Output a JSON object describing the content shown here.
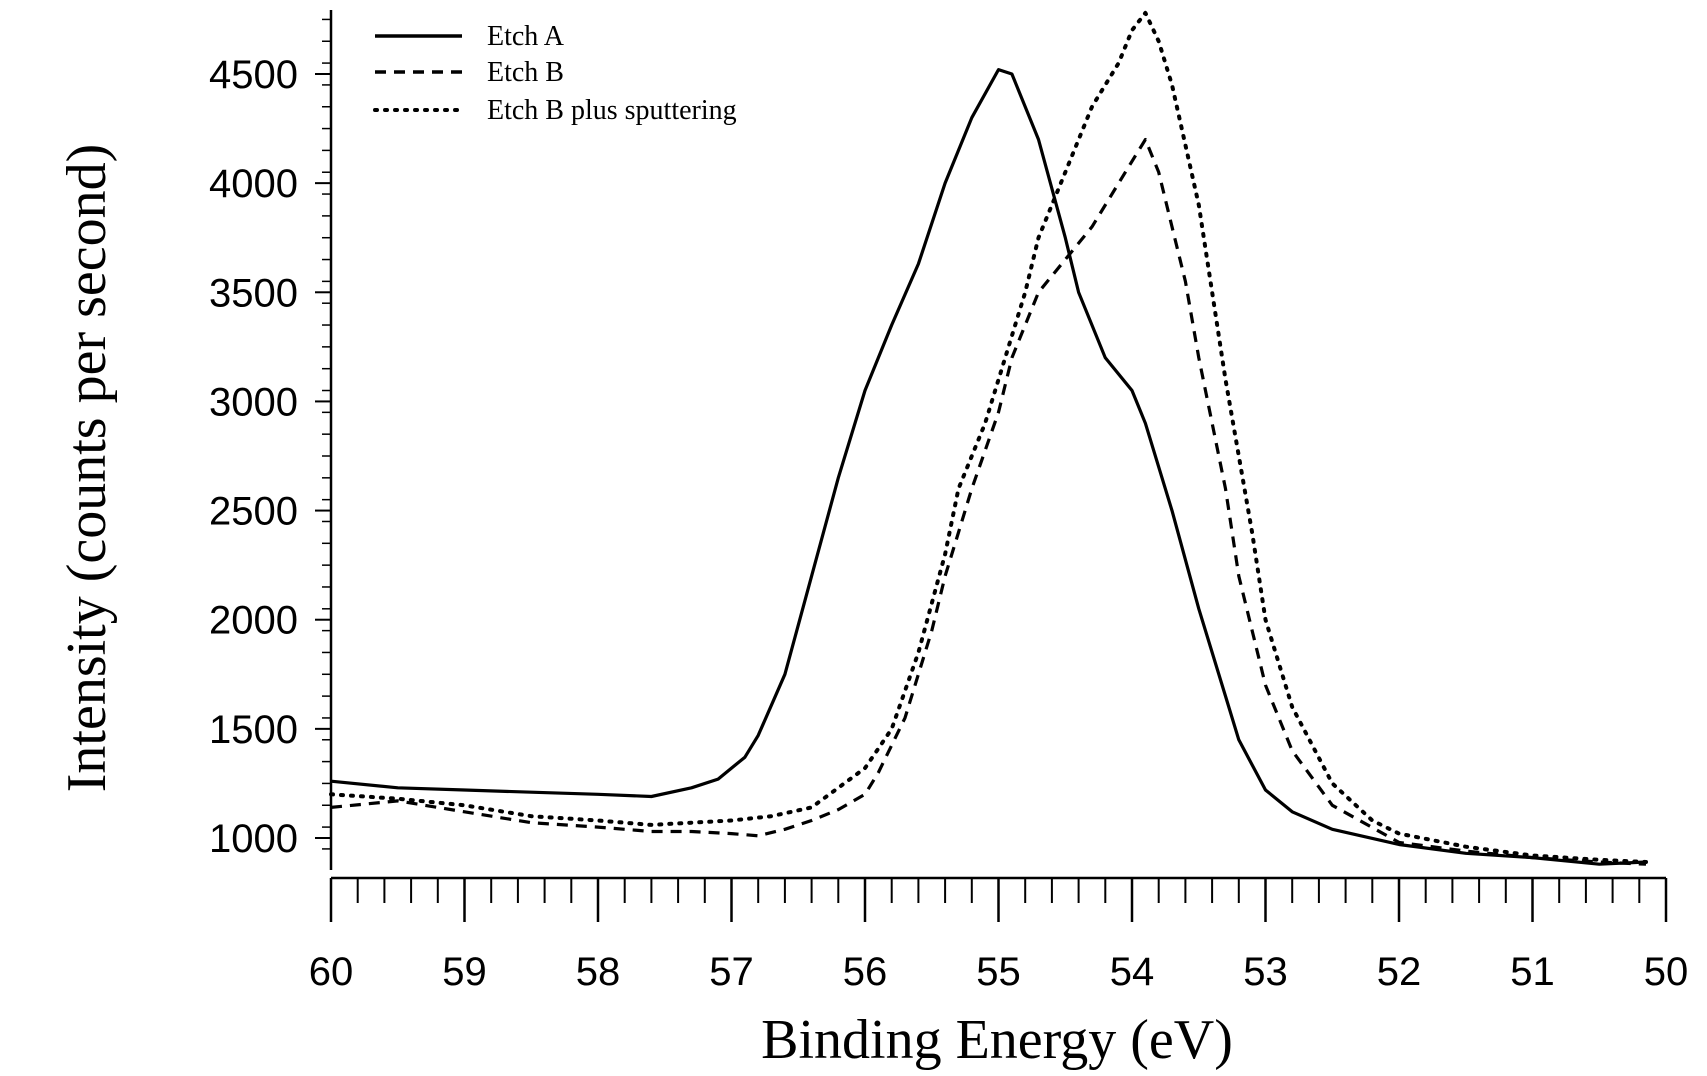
{
  "chart_data": {
    "type": "line",
    "title": "",
    "xlabel": "Binding Energy (eV)",
    "ylabel": "Intensity (counts per second)",
    "xlim": [
      60,
      50
    ],
    "x_reversed": true,
    "ylim": [
      820,
      4800
    ],
    "xticks": [
      60,
      59,
      58,
      57,
      56,
      55,
      54,
      53,
      52,
      51,
      50
    ],
    "yticks": [
      1000,
      1500,
      2000,
      2500,
      3000,
      3500,
      4000,
      4500
    ],
    "grid": false,
    "legend_position": "top-left",
    "series": [
      {
        "name": "Etch A",
        "style": "solid",
        "color": "#000000",
        "x": [
          60.0,
          59.5,
          59.0,
          58.5,
          58.0,
          57.6,
          57.3,
          57.1,
          57.0,
          56.9,
          56.8,
          56.6,
          56.4,
          56.2,
          56.0,
          55.8,
          55.6,
          55.4,
          55.2,
          55.0,
          54.9,
          54.7,
          54.5,
          54.4,
          54.2,
          54.0,
          53.9,
          53.7,
          53.5,
          53.3,
          53.2,
          53.0,
          52.8,
          52.5,
          52.0,
          51.5,
          51.0,
          50.5,
          50.15
        ],
        "y": [
          1260,
          1230,
          1220,
          1210,
          1200,
          1190,
          1230,
          1270,
          1320,
          1370,
          1470,
          1750,
          2200,
          2650,
          3050,
          3350,
          3630,
          4000,
          4300,
          4520,
          4500,
          4200,
          3750,
          3500,
          3200,
          3050,
          2900,
          2500,
          2050,
          1650,
          1450,
          1220,
          1120,
          1040,
          970,
          930,
          910,
          880,
          890
        ]
      },
      {
        "name": "Etch B",
        "style": "dashed",
        "color": "#000000",
        "x": [
          60.0,
          59.5,
          59.0,
          58.5,
          58.0,
          57.6,
          57.3,
          57.0,
          56.8,
          56.6,
          56.4,
          56.2,
          56.0,
          55.9,
          55.7,
          55.5,
          55.4,
          55.3,
          55.2,
          55.0,
          54.9,
          54.7,
          54.5,
          54.3,
          54.2,
          54.0,
          53.9,
          53.8,
          53.7,
          53.6,
          53.5,
          53.3,
          53.2,
          53.0,
          52.8,
          52.5,
          52.0,
          51.5,
          51.0,
          50.5,
          50.15
        ],
        "y": [
          1140,
          1170,
          1120,
          1070,
          1050,
          1030,
          1030,
          1020,
          1010,
          1040,
          1080,
          1130,
          1200,
          1300,
          1550,
          1950,
          2200,
          2400,
          2600,
          2950,
          3200,
          3500,
          3650,
          3800,
          3900,
          4100,
          4200,
          4050,
          3800,
          3550,
          3200,
          2600,
          2200,
          1700,
          1400,
          1150,
          980,
          940,
          910,
          890,
          880
        ]
      },
      {
        "name": "Etch B plus sputtering",
        "style": "dotted",
        "color": "#000000",
        "x": [
          60.0,
          59.5,
          59.0,
          58.5,
          58.0,
          57.6,
          57.3,
          57.0,
          56.7,
          56.4,
          56.2,
          56.0,
          55.8,
          55.6,
          55.4,
          55.3,
          55.1,
          55.0,
          54.8,
          54.7,
          54.5,
          54.3,
          54.1,
          54.0,
          53.9,
          53.8,
          53.7,
          53.5,
          53.3,
          53.1,
          53.0,
          52.8,
          52.5,
          52.2,
          52.0,
          51.5,
          51.0,
          50.5,
          50.15
        ],
        "y": [
          1200,
          1180,
          1150,
          1100,
          1080,
          1060,
          1070,
          1080,
          1100,
          1140,
          1230,
          1320,
          1500,
          1850,
          2300,
          2600,
          2900,
          3100,
          3500,
          3750,
          4050,
          4350,
          4550,
          4700,
          4780,
          4650,
          4450,
          3900,
          3100,
          2400,
          2000,
          1600,
          1250,
          1080,
          1020,
          960,
          920,
          900,
          890
        ]
      }
    ]
  }
}
